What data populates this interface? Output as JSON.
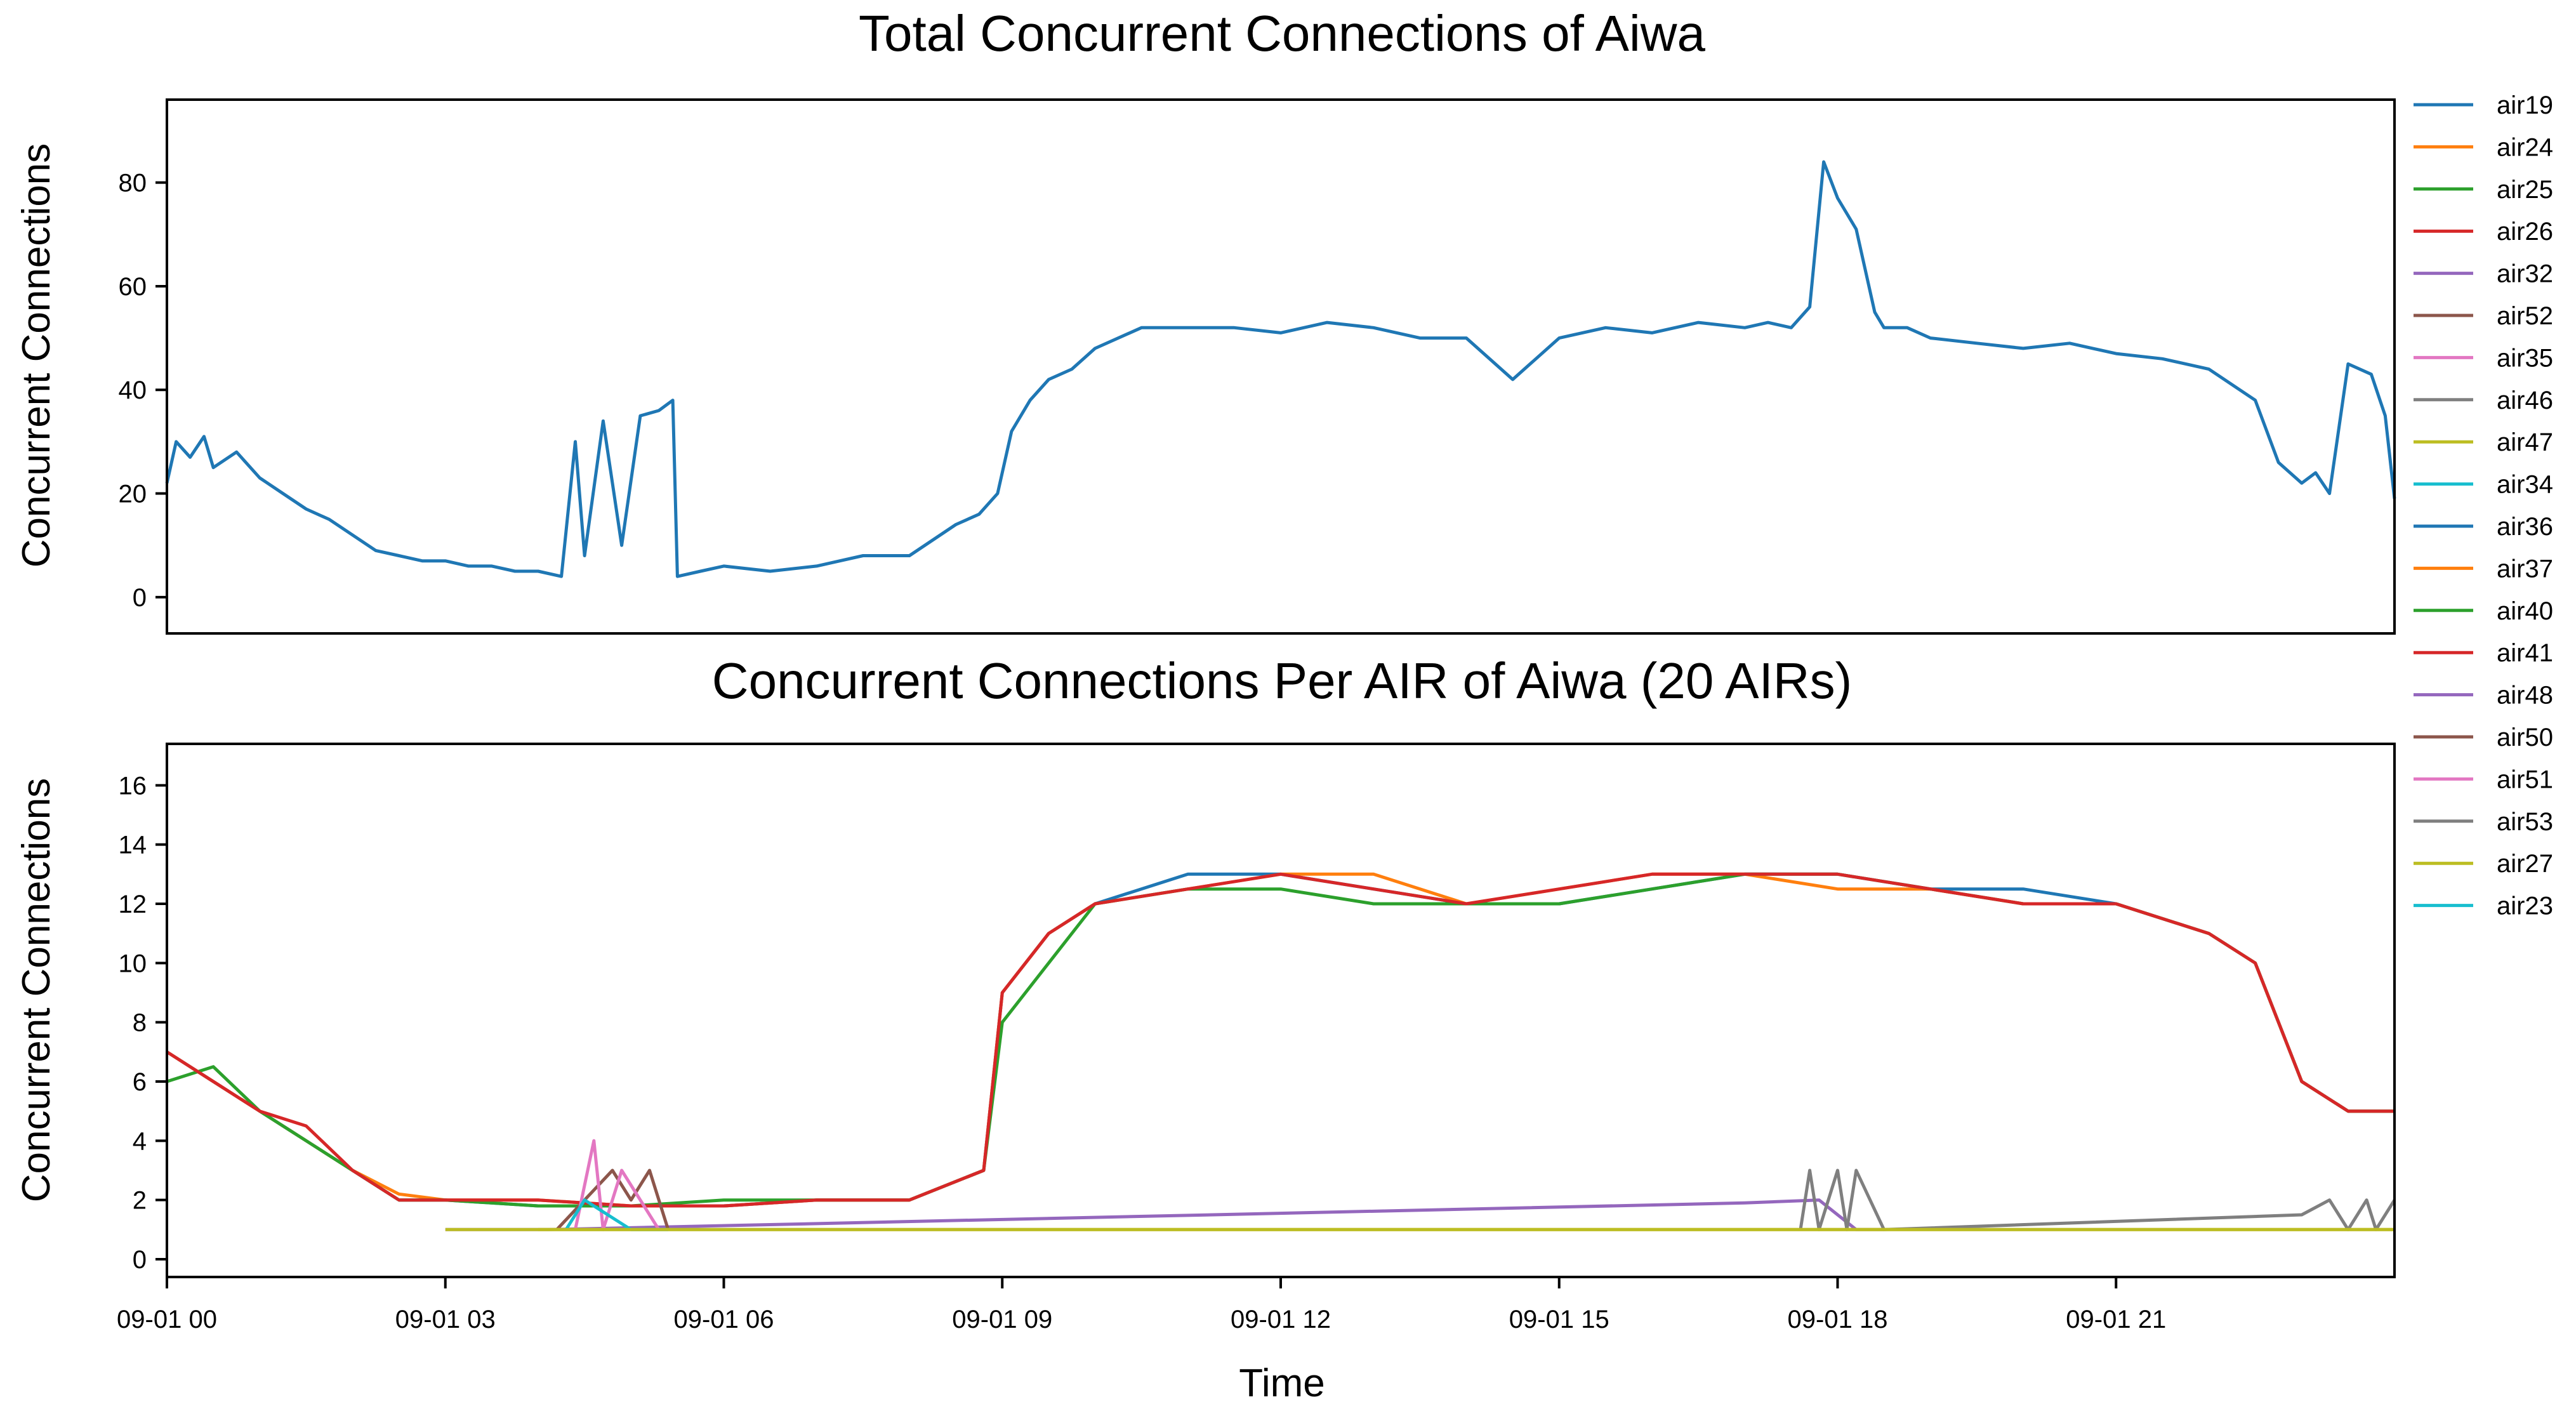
{
  "chart_data": [
    {
      "type": "line",
      "title": "Total Concurrent Connections of Aiwa",
      "ylabel": "Concurrent Connections",
      "xlabel": "",
      "ylim": [
        -7,
        96
      ],
      "yticks": [
        0,
        20,
        40,
        60,
        80
      ],
      "xlim_hours": [
        0,
        24
      ],
      "series": [
        {
          "color": "#1f77b4",
          "x_hours": [
            0.0,
            0.1,
            0.25,
            0.4,
            0.5,
            0.75,
            1.0,
            1.25,
            1.5,
            1.75,
            2.0,
            2.25,
            2.5,
            2.75,
            3.0,
            3.25,
            3.5,
            3.75,
            4.0,
            4.25,
            4.4,
            4.5,
            4.7,
            4.9,
            5.1,
            5.3,
            5.45,
            5.5,
            5.75,
            6.0,
            6.5,
            7.0,
            7.5,
            8.0,
            8.5,
            8.75,
            8.95,
            9.1,
            9.3,
            9.5,
            9.75,
            10.0,
            10.5,
            11.0,
            11.5,
            12.0,
            12.5,
            13.0,
            13.5,
            14.0,
            14.5,
            15.0,
            15.5,
            16.0,
            16.5,
            17.0,
            17.25,
            17.5,
            17.7,
            17.85,
            18.0,
            18.2,
            18.4,
            18.5,
            18.75,
            19.0,
            19.5,
            20.0,
            20.5,
            21.0,
            21.5,
            22.0,
            22.5,
            22.75,
            23.0,
            23.15,
            23.3,
            23.5,
            23.75,
            23.9,
            24.0
          ],
          "y": [
            22,
            30,
            27,
            31,
            25,
            28,
            23,
            20,
            17,
            15,
            12,
            9,
            8,
            7,
            7,
            6,
            6,
            5,
            5,
            4,
            30,
            8,
            34,
            10,
            35,
            36,
            38,
            4,
            5,
            6,
            5,
            6,
            8,
            8,
            14,
            16,
            20,
            32,
            38,
            42,
            44,
            48,
            52,
            52,
            52,
            51,
            53,
            52,
            50,
            50,
            42,
            50,
            52,
            51,
            53,
            52,
            53,
            52,
            56,
            84,
            77,
            71,
            55,
            52,
            52,
            50,
            49,
            48,
            49,
            47,
            46,
            44,
            38,
            26,
            22,
            24,
            20,
            45,
            43,
            35,
            19
          ]
        }
      ]
    },
    {
      "type": "line",
      "title": "Concurrent Connections Per AIR of Aiwa (20 AIRs)",
      "ylabel": "Concurrent Connections",
      "xlabel": "Time",
      "ylim": [
        -0.6,
        17.4
      ],
      "yticks": [
        0,
        2,
        4,
        6,
        8,
        10,
        12,
        14,
        16
      ],
      "xlim_hours": [
        0,
        24
      ],
      "xticks": [
        "09-01 00",
        "09-01 03",
        "09-01 06",
        "09-01 09",
        "09-01 12",
        "09-01 15",
        "09-01 18",
        "09-01 21"
      ],
      "series": [
        {
          "name": "air19",
          "color": "#1f77b4",
          "x_hours": [
            0,
            0.5,
            1.0,
            1.5,
            2.0,
            2.5,
            3.0,
            4.0,
            5.0,
            6.0,
            7.0,
            8.0,
            8.8,
            9.0,
            9.5,
            10.0,
            11.0,
            12.0,
            13.0,
            14.0,
            15.0,
            16.0,
            17.0,
            18.0,
            19.0,
            20.0,
            21.0,
            22.0,
            22.5,
            23.0,
            23.5,
            24.0
          ],
          "y": [
            7,
            6,
            5,
            4,
            3,
            2,
            2,
            1.8,
            1.8,
            1.8,
            2,
            2,
            3,
            9,
            11,
            12,
            13,
            13,
            12.5,
            12,
            12,
            12.5,
            13,
            13,
            12.5,
            12.5,
            12,
            11,
            10,
            6,
            5,
            5
          ]
        },
        {
          "name": "air24",
          "color": "#ff7f0e",
          "x_hours": [
            0,
            0.5,
            1.0,
            1.5,
            2.0,
            2.5,
            3.0,
            4.0,
            5.0,
            6.0,
            7.0,
            8.0,
            8.8,
            9.0,
            9.5,
            10.0,
            11.0,
            12.0,
            13.0,
            14.0,
            15.0,
            16.0,
            17.0,
            18.0,
            19.0,
            20.0,
            21.0,
            22.0,
            22.5,
            23.0,
            23.5,
            24.0
          ],
          "y": [
            7,
            6,
            5,
            4,
            3,
            2.2,
            2,
            2,
            1.8,
            1.8,
            2,
            2,
            3,
            9,
            11,
            12,
            12.5,
            13,
            13,
            12,
            12.5,
            13,
            13,
            12.5,
            12.5,
            12,
            12,
            11,
            10,
            6,
            5,
            5
          ]
        },
        {
          "name": "air25",
          "color": "#2ca02c",
          "x_hours": [
            0,
            0.5,
            1.0,
            1.5,
            2.0,
            2.5,
            3.0,
            4.0,
            5.0,
            6.0,
            7.0,
            8.0,
            8.8,
            9.0,
            9.5,
            10.0,
            11.0,
            12.0,
            13.0,
            14.0,
            15.0,
            16.0,
            17.0,
            18.0,
            19.0,
            20.0,
            21.0,
            22.0,
            22.5,
            23.0,
            23.5,
            24.0
          ],
          "y": [
            6,
            6.5,
            5,
            4,
            3,
            2,
            2,
            1.8,
            1.8,
            2,
            2,
            2,
            3,
            8,
            10,
            12,
            12.5,
            12.5,
            12,
            12,
            12,
            12.5,
            13,
            13,
            12.5,
            12,
            12,
            11,
            10,
            6,
            5,
            5
          ]
        },
        {
          "name": "air26",
          "color": "#d62728",
          "x_hours": [
            0,
            0.5,
            1.0,
            1.5,
            2.0,
            2.5,
            3.0,
            4.0,
            5.0,
            6.0,
            7.0,
            8.0,
            8.8,
            9.0,
            9.5,
            10.0,
            11.0,
            12.0,
            13.0,
            14.0,
            15.0,
            16.0,
            17.0,
            18.0,
            19.0,
            20.0,
            21.0,
            22.0,
            22.5,
            23.0,
            23.5,
            24.0
          ],
          "y": [
            7,
            6,
            5,
            4.5,
            3,
            2,
            2,
            2,
            1.8,
            1.8,
            2,
            2,
            3,
            9,
            11,
            12,
            12.5,
            13,
            12.5,
            12,
            12.5,
            13,
            13,
            13,
            12.5,
            12,
            12,
            11,
            10,
            6,
            5,
            5
          ]
        },
        {
          "name": "air32",
          "color": "#9467bd",
          "x_hours": [
            3.0,
            4.0,
            4.1,
            17.0,
            17.8,
            18.2,
            18.5
          ],
          "y": [
            1,
            1,
            1,
            1.9,
            2,
            1,
            1
          ]
        },
        {
          "name": "air52",
          "color": "#8c564b",
          "x_hours": [
            4.2,
            4.5,
            4.8,
            5.0,
            5.2,
            5.4
          ],
          "y": [
            1,
            2,
            3,
            2,
            3,
            1
          ]
        },
        {
          "name": "air35",
          "color": "#e377c2",
          "x_hours": [
            4.4,
            4.6,
            4.7,
            4.9,
            5.1,
            5.3
          ],
          "y": [
            1,
            4,
            1,
            3,
            2,
            1
          ]
        },
        {
          "name": "air46",
          "color": "#7f7f7f",
          "x_hours": [
            17.6,
            17.7,
            17.8,
            17.9,
            18.0,
            18.1,
            18.2,
            18.5,
            23.0,
            23.3,
            23.5,
            23.7,
            23.8,
            24.0
          ],
          "y": [
            1,
            3,
            1,
            2,
            3,
            1,
            3,
            1,
            1.5,
            2,
            1,
            2,
            1,
            2
          ]
        },
        {
          "name": "air47",
          "color": "#bcbd22",
          "x_hours": [
            4.0,
            24.0
          ],
          "y": [
            1,
            1
          ]
        },
        {
          "name": "air34",
          "color": "#17becf",
          "x_hours": [
            4.3,
            4.5,
            5.0,
            5.4
          ],
          "y": [
            1,
            2,
            1,
            1
          ]
        },
        {
          "name": "air36",
          "color": "#1f77b4",
          "x_hours": [],
          "y": []
        },
        {
          "name": "air37",
          "color": "#ff7f0e",
          "x_hours": [],
          "y": []
        },
        {
          "name": "air40",
          "color": "#2ca02c",
          "x_hours": [],
          "y": []
        },
        {
          "name": "air41",
          "color": "#d62728",
          "x_hours": [],
          "y": []
        },
        {
          "name": "air48",
          "color": "#9467bd",
          "x_hours": [],
          "y": []
        },
        {
          "name": "air50",
          "color": "#8c564b",
          "x_hours": [],
          "y": []
        },
        {
          "name": "air51",
          "color": "#e377c2",
          "x_hours": [],
          "y": []
        },
        {
          "name": "air53",
          "color": "#7f7f7f",
          "x_hours": [],
          "y": []
        },
        {
          "name": "air27",
          "color": "#bcbd22",
          "x_hours": [
            3.0,
            24.0
          ],
          "y": [
            1,
            1
          ]
        },
        {
          "name": "air23",
          "color": "#17becf",
          "x_hours": [],
          "y": []
        }
      ]
    }
  ],
  "legend": {
    "placement": "right",
    "entries": [
      {
        "label": "air19",
        "color": "#1f77b4"
      },
      {
        "label": "air24",
        "color": "#ff7f0e"
      },
      {
        "label": "air25",
        "color": "#2ca02c"
      },
      {
        "label": "air26",
        "color": "#d62728"
      },
      {
        "label": "air32",
        "color": "#9467bd"
      },
      {
        "label": "air52",
        "color": "#8c564b"
      },
      {
        "label": "air35",
        "color": "#e377c2"
      },
      {
        "label": "air46",
        "color": "#7f7f7f"
      },
      {
        "label": "air47",
        "color": "#bcbd22"
      },
      {
        "label": "air34",
        "color": "#17becf"
      },
      {
        "label": "air36",
        "color": "#1f77b4"
      },
      {
        "label": "air37",
        "color": "#ff7f0e"
      },
      {
        "label": "air40",
        "color": "#2ca02c"
      },
      {
        "label": "air41",
        "color": "#d62728"
      },
      {
        "label": "air48",
        "color": "#9467bd"
      },
      {
        "label": "air50",
        "color": "#8c564b"
      },
      {
        "label": "air51",
        "color": "#e377c2"
      },
      {
        "label": "air53",
        "color": "#7f7f7f"
      },
      {
        "label": "air27",
        "color": "#bcbd22"
      },
      {
        "label": "air23",
        "color": "#17becf"
      }
    ]
  }
}
